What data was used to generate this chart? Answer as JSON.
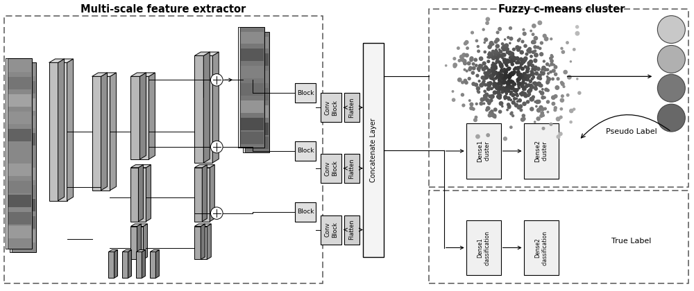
{
  "title_left": "Multi-scale feature extractor",
  "title_right": "Fuzzy c-means cluster",
  "bg_color": "#ffffff",
  "text_color": "#000000",
  "pseudo_label": "Pseudo Label",
  "true_label": "True Label",
  "concat_label": "Concatenate Layer",
  "dense1_cluster": "Dense1\ncluster",
  "dense2_cluster": "Dense2\ncluster",
  "dense1_class": "Dense1\nclassification",
  "dense2_class": "Dense2\nclassification",
  "flatten_label": "Flatten",
  "conv_label": "Conv\nBlock",
  "figsize": [
    10.0,
    4.2
  ],
  "dpi": 100,
  "circle_colors": [
    "#c8c8c8",
    "#b0b0b0",
    "#787878",
    "#686868"
  ],
  "box_face": "#e8e8e8",
  "concat_face": "#f4f4f4"
}
